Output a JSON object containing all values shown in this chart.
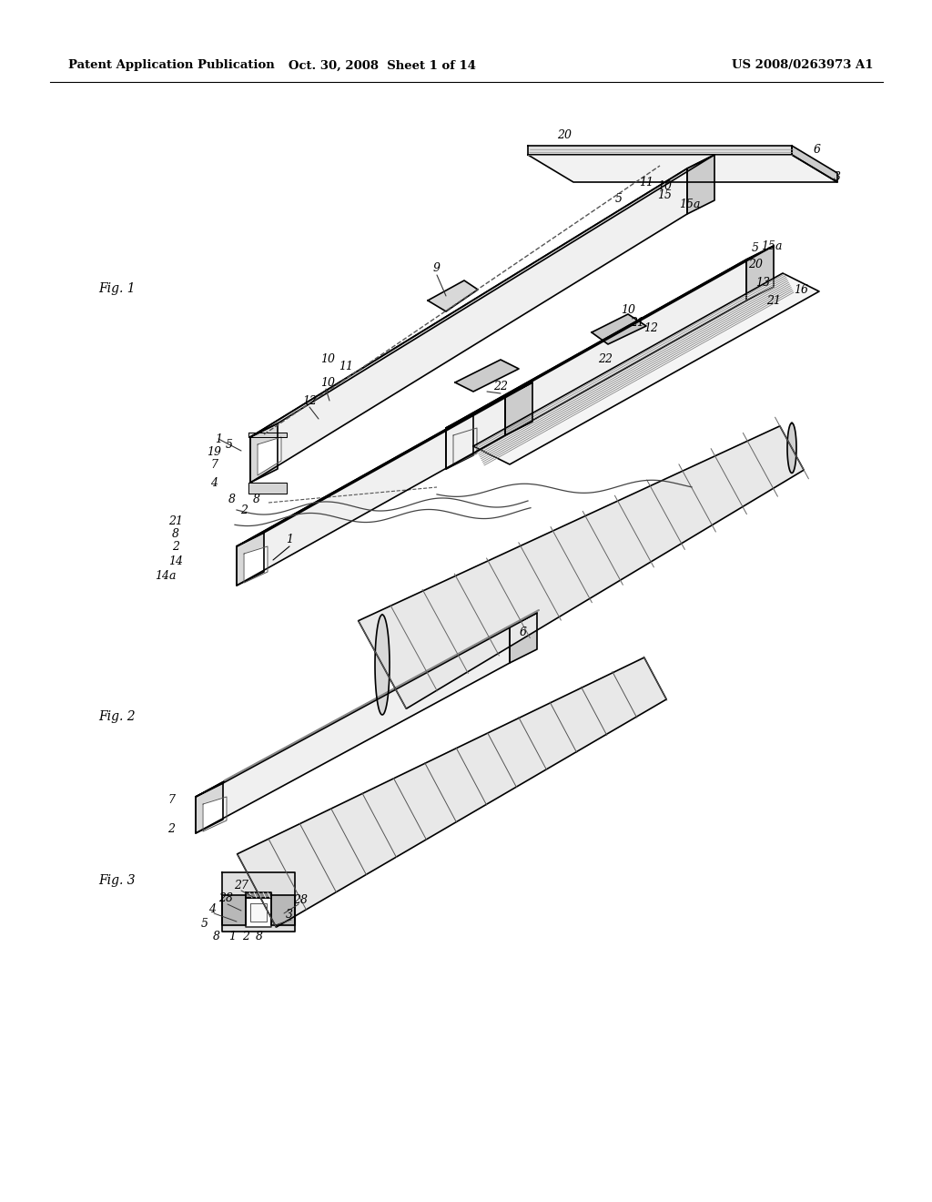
{
  "header_left": "Patent Application Publication",
  "header_mid": "Oct. 30, 2008  Sheet 1 of 14",
  "header_right": "US 2008/0263973 A1",
  "background_color": "#ffffff",
  "line_color": "#000000",
  "text_color": "#000000",
  "fig1_label": "Fig. 1",
  "fig2_label": "Fig. 2",
  "fig3_label": "Fig. 3"
}
